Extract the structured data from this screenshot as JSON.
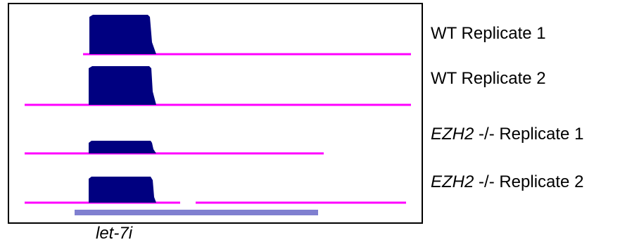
{
  "colors": {
    "signal": "#000080",
    "baseline": "#ff00ff",
    "gene_bar": "#8080d0",
    "frame": "#000000"
  },
  "tracks": [
    {
      "label_gene": "",
      "label_text": "WT Replicate 1",
      "peak_level": 1.0
    },
    {
      "label_gene": "",
      "label_text": "WT Replicate 2",
      "peak_level": 1.0
    },
    {
      "label_gene": "EZH2",
      "label_text": " -/- Replicate 1",
      "peak_level": 0.4
    },
    {
      "label_gene": "EZH2",
      "label_text": " -/- Replicate 2",
      "peak_level": 0.75
    }
  ],
  "gene": {
    "name": "let-7i"
  }
}
